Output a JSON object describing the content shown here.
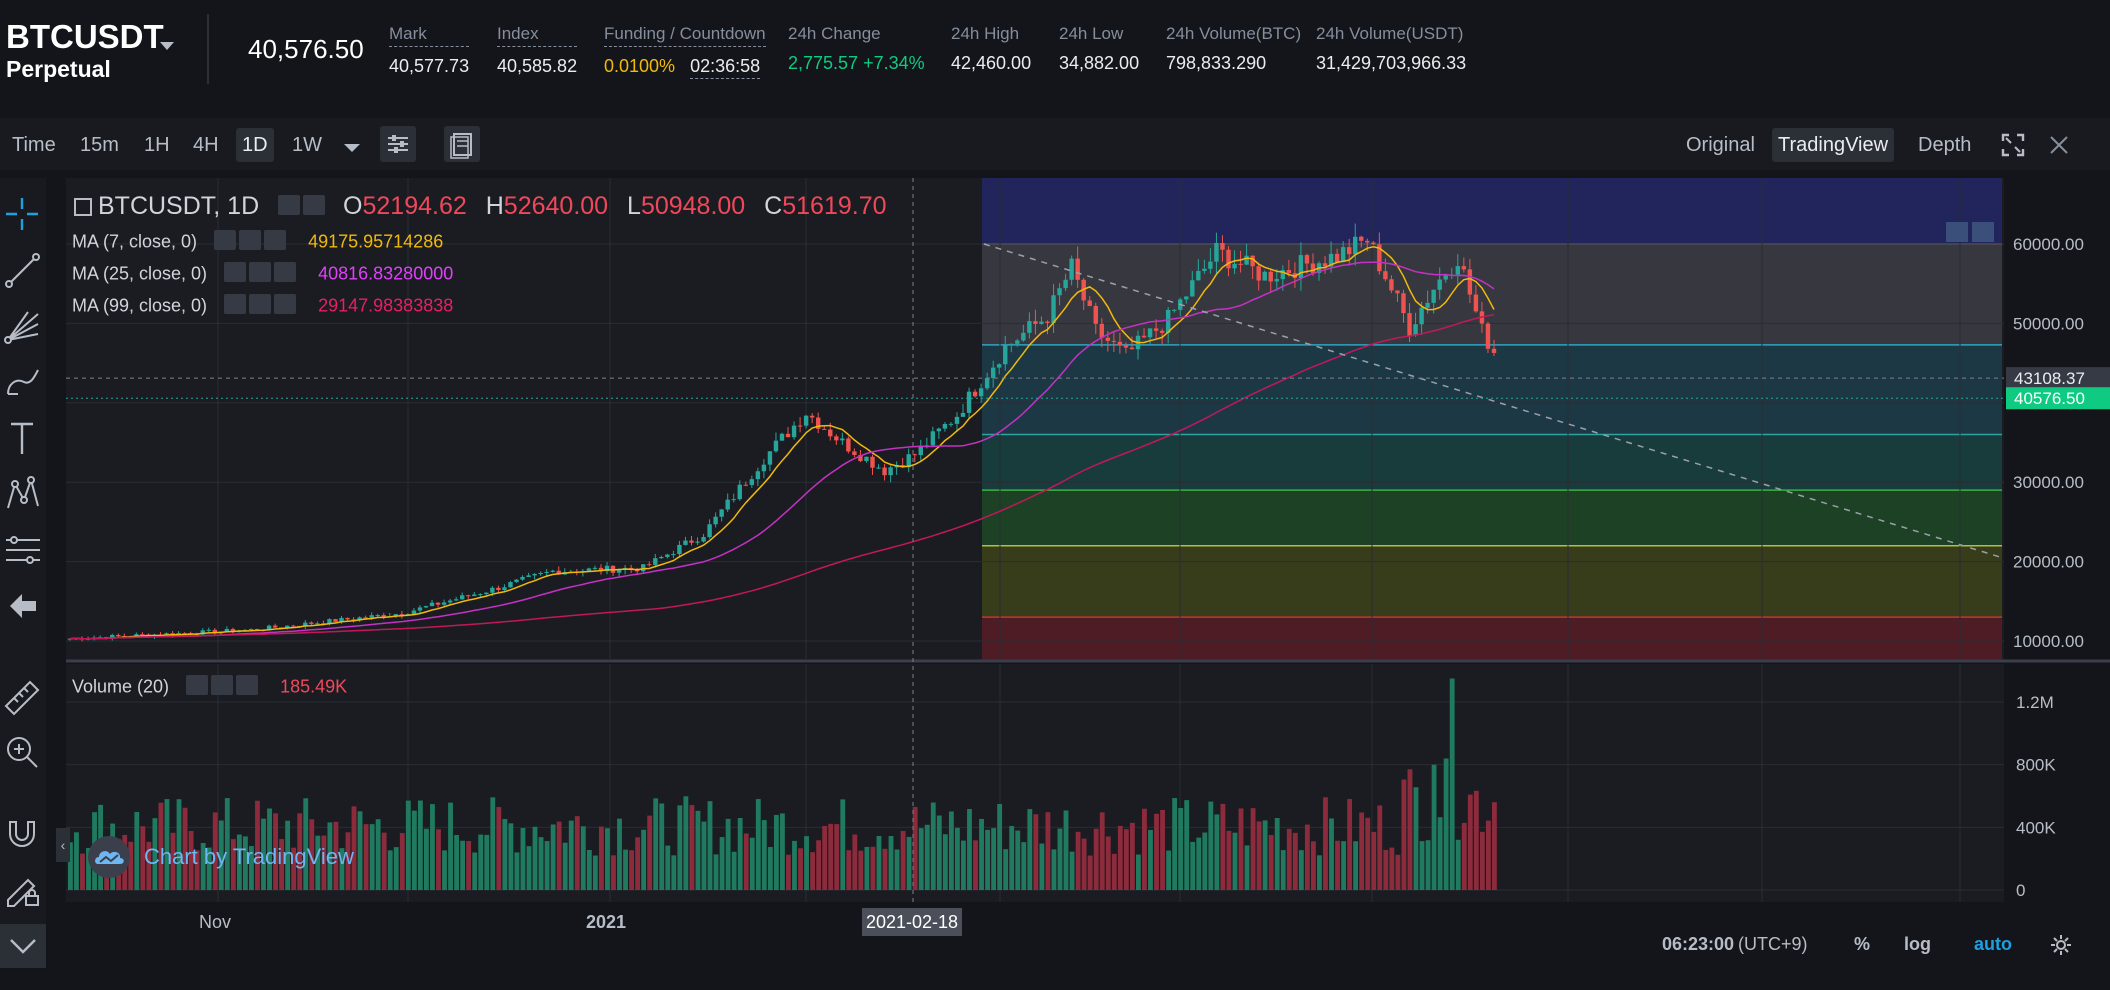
{
  "header": {
    "symbol": "BTCUSDT",
    "contract": "Perpetual",
    "last_price": "40,576.50",
    "mark_label": "Mark",
    "mark_value": "40,577.73",
    "index_label": "Index",
    "index_value": "40,585.82",
    "funding_label": "Funding / Countdown",
    "funding_rate": "0.0100%",
    "countdown": "02:36:58",
    "change_label": "24h Change",
    "change_value": "2,775.57 +7.34%",
    "high_label": "24h High",
    "high_value": "42,460.00",
    "low_label": "24h Low",
    "low_value": "34,882.00",
    "vol_btc_label": "24h Volume(BTC)",
    "vol_btc_value": "798,833.290",
    "vol_usdt_label": "24h Volume(USDT)",
    "vol_usdt_value": "31,429,703,966.33"
  },
  "toolbar": {
    "intervals": [
      "Time",
      "15m",
      "1H",
      "4H",
      "1D",
      "1W"
    ],
    "active_interval": "1D",
    "views": [
      "Original",
      "TradingView",
      "Depth"
    ],
    "active_view": "TradingView"
  },
  "legend": {
    "main_title": "BTCUSDT, 1D",
    "o_label": "O",
    "o_value": "52194.62",
    "h_label": "H",
    "h_value": "52640.00",
    "l_label": "L",
    "l_value": "50948.00",
    "c_label": "C",
    "c_value": "51619.70",
    "ma7_label": "MA (7, close, 0)",
    "ma7_value": "49175.95714286",
    "ma25_label": "MA (25, close, 0)",
    "ma25_value": "40816.83280000",
    "ma99_label": "MA (99, close, 0)",
    "ma99_value": "29147.98383838",
    "volume_label": "Volume (20)",
    "volume_value": "185.49K"
  },
  "chart_data": {
    "type": "candlestick",
    "price_axis_ticks": [
      "60000.00",
      "50000.00",
      "30000.00",
      "20000.00",
      "10000.00"
    ],
    "price_labels": {
      "crosshair": "43108.37",
      "last": "40576.50"
    },
    "volume_axis_ticks": [
      "1.2M",
      "800K",
      "400K",
      "0"
    ],
    "time_axis_ticks": [
      "Nov",
      "2021"
    ],
    "crosshair_date": "2021-02-18",
    "price_range": [
      5000,
      66000
    ],
    "fib_levels": [
      60000,
      47300,
      36000,
      29000,
      22000,
      13000
    ],
    "colors": {
      "up": "#26a69a",
      "down": "#ef5350",
      "ma7": "#f0b90b",
      "ma25": "#c431c4",
      "ma99": "#c2185b"
    }
  },
  "watermark": {
    "text": "Chart by TradingView"
  },
  "footer": {
    "time": "06:23:00",
    "timezone": "(UTC+9)",
    "percent": "%",
    "log": "log",
    "auto": "auto"
  }
}
